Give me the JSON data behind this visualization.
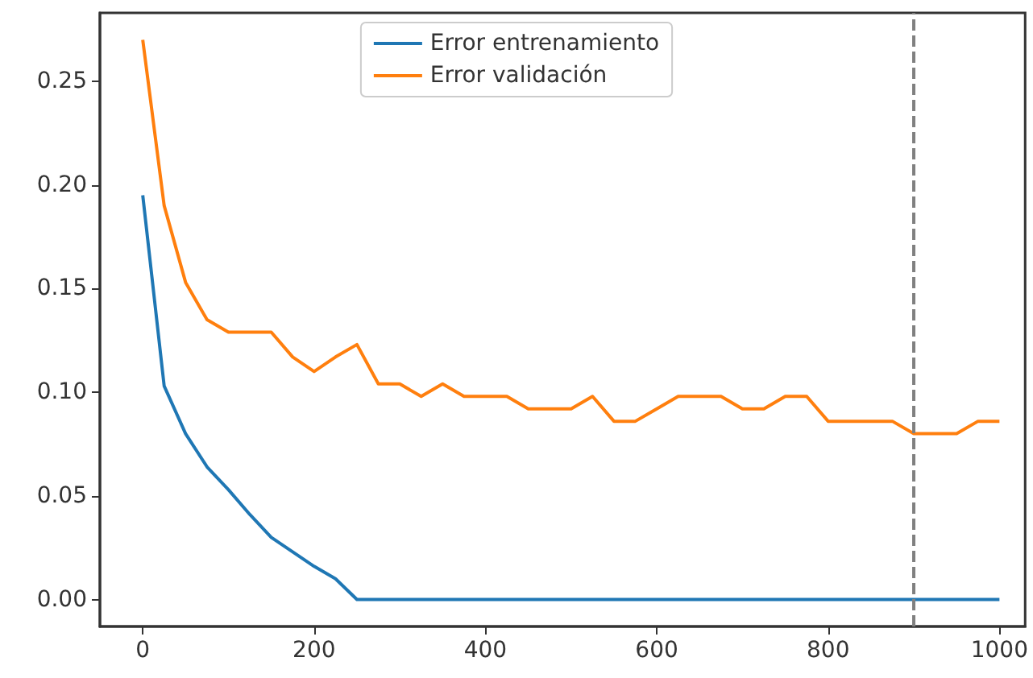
{
  "chart_data": {
    "type": "line",
    "x": [
      0,
      25,
      50,
      75,
      100,
      125,
      150,
      175,
      200,
      225,
      250,
      275,
      300,
      325,
      350,
      375,
      400,
      425,
      450,
      475,
      500,
      525,
      550,
      575,
      600,
      625,
      650,
      675,
      700,
      725,
      750,
      775,
      800,
      825,
      850,
      875,
      900,
      925,
      950,
      975,
      1000
    ],
    "series": [
      {
        "name": "Error entrenamiento",
        "color": "#1f77b4",
        "values": [
          0.195,
          0.103,
          0.08,
          0.064,
          0.053,
          0.041,
          0.03,
          0.023,
          0.016,
          0.01,
          0,
          0,
          0,
          0,
          0,
          0,
          0,
          0,
          0,
          0,
          0,
          0,
          0,
          0,
          0,
          0,
          0,
          0,
          0,
          0,
          0,
          0,
          0,
          0,
          0,
          0,
          0,
          0,
          0,
          0,
          0
        ]
      },
      {
        "name": "Error validación",
        "color": "#ff7f0e",
        "values": [
          0.27,
          0.19,
          0.153,
          0.135,
          0.129,
          0.129,
          0.129,
          0.117,
          0.11,
          0.117,
          0.123,
          0.104,
          0.104,
          0.098,
          0.104,
          0.098,
          0.098,
          0.098,
          0.092,
          0.092,
          0.092,
          0.098,
          0.086,
          0.086,
          0.092,
          0.098,
          0.098,
          0.098,
          0.092,
          0.092,
          0.098,
          0.098,
          0.086,
          0.086,
          0.086,
          0.086,
          0.08,
          0.08,
          0.08,
          0.086,
          0.086
        ]
      }
    ],
    "xlim": [
      -50,
      1030
    ],
    "xticks": [
      0,
      200,
      400,
      600,
      800,
      1000
    ],
    "ylim": [
      -0.013,
      0.283
    ],
    "yticks": [
      {
        "value": 0,
        "label": "0.00"
      },
      {
        "value": 0.05,
        "label": "0.05"
      },
      {
        "value": 0.1,
        "label": "0.10"
      },
      {
        "value": 0.15,
        "label": "0.15"
      },
      {
        "value": 0.2,
        "label": "0.20"
      },
      {
        "value": 0.25,
        "label": "0.25"
      }
    ],
    "ref_lines": [
      {
        "axis": "x",
        "value": 900,
        "color": "#808080",
        "line_style": "dashed"
      }
    ],
    "grid": false,
    "legend": "top",
    "marker": "none",
    "line_style": "solid"
  }
}
